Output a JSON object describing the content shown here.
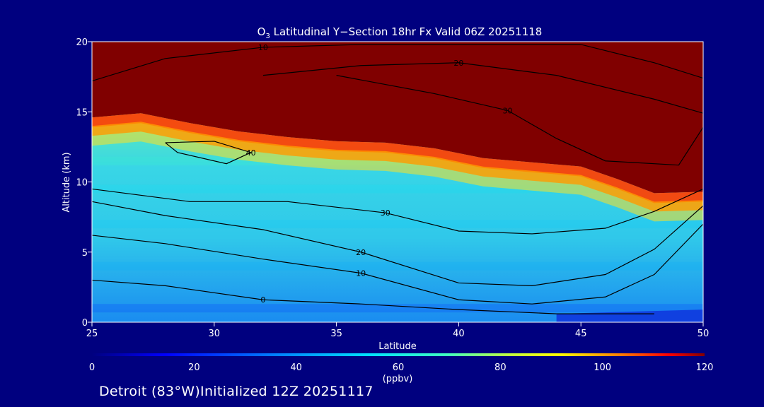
{
  "chart_data": {
    "type": "heatmap",
    "title_prefix": "O",
    "title_sub": "3",
    "title_rest": " Latitudinal Y−Section 18hr  Fx Valid 06Z 20251118",
    "xlabel": "Latitude",
    "ylabel": "Altitude (km)",
    "xlim": [
      25,
      50
    ],
    "ylim": [
      0,
      20
    ],
    "xticks": [
      "25",
      "30",
      "35",
      "40",
      "45",
      "50"
    ],
    "xtick_values": [
      25,
      30,
      35,
      40,
      45,
      50
    ],
    "yticks": [
      "0",
      "5",
      "10",
      "15",
      "20"
    ],
    "ytick_values": [
      0,
      5,
      10,
      15,
      20
    ],
    "colorbar": {
      "label": "(ppbv)",
      "min": 0,
      "max": 120,
      "ticks": [
        "0",
        "20",
        "40",
        "60",
        "80",
        "100",
        "120"
      ],
      "tick_values": [
        0,
        20,
        40,
        60,
        80,
        100,
        120
      ]
    },
    "tropopause_height_km": [
      [
        25,
        14.6
      ],
      [
        27,
        14.9
      ],
      [
        29,
        14.2
      ],
      [
        31,
        13.6
      ],
      [
        33,
        13.2
      ],
      [
        35,
        12.9
      ],
      [
        37,
        12.8
      ],
      [
        39,
        12.4
      ],
      [
        41,
        11.7
      ],
      [
        43,
        11.4
      ],
      [
        45,
        11.1
      ],
      [
        46.5,
        10.2
      ],
      [
        48,
        9.2
      ],
      [
        50,
        9.3
      ]
    ],
    "fill_levels_ppbv": [
      {
        "alt_km": 1.0,
        "value": 20
      },
      {
        "alt_km": 4.0,
        "value": 44
      },
      {
        "alt_km": 7.0,
        "value": 50
      },
      {
        "alt_km": 9.5,
        "value": 56
      },
      {
        "alt_km": 11.5,
        "value": 68
      }
    ],
    "contours": [
      {
        "label": "0",
        "points": [
          [
            25,
            3.0
          ],
          [
            28,
            2.6
          ],
          [
            32,
            1.6
          ],
          [
            36,
            1.3
          ],
          [
            40,
            0.9
          ],
          [
            44,
            0.6
          ],
          [
            48,
            0.6
          ]
        ]
      },
      {
        "label": "10",
        "points": [
          [
            25,
            6.2
          ],
          [
            28,
            5.6
          ],
          [
            32,
            4.5
          ],
          [
            36,
            3.5
          ],
          [
            40,
            1.6
          ],
          [
            43,
            1.3
          ],
          [
            46,
            1.8
          ],
          [
            48,
            3.4
          ],
          [
            50,
            7.0
          ]
        ]
      },
      {
        "label": "20",
        "points": [
          [
            25,
            8.6
          ],
          [
            28,
            7.6
          ],
          [
            32,
            6.6
          ],
          [
            36,
            5.0
          ],
          [
            40,
            2.8
          ],
          [
            43,
            2.6
          ],
          [
            46,
            3.4
          ],
          [
            48,
            5.2
          ],
          [
            50,
            8.3
          ]
        ]
      },
      {
        "label": "30",
        "points": [
          [
            25,
            9.5
          ],
          [
            29,
            8.6
          ],
          [
            33,
            8.6
          ],
          [
            37,
            7.8
          ],
          [
            40,
            6.5
          ],
          [
            43,
            6.3
          ],
          [
            46,
            6.7
          ],
          [
            48,
            7.9
          ],
          [
            50,
            9.5
          ]
        ]
      },
      {
        "label": "40",
        "points": [
          [
            28,
            12.8
          ],
          [
            30,
            12.9
          ],
          [
            31.5,
            12.1
          ],
          [
            30.5,
            11.3
          ],
          [
            28.5,
            12.1
          ],
          [
            28,
            12.8
          ]
        ]
      },
      {
        "label": "30",
        "points": [
          [
            35,
            17.6
          ],
          [
            39,
            16.3
          ],
          [
            42,
            15.1
          ],
          [
            44,
            13.1
          ],
          [
            46,
            11.5
          ],
          [
            49,
            11.2
          ],
          [
            50,
            13.9
          ]
        ]
      },
      {
        "label": "20",
        "points": [
          [
            32,
            17.6
          ],
          [
            36,
            18.3
          ],
          [
            40,
            18.5
          ],
          [
            44,
            17.6
          ],
          [
            48,
            15.9
          ],
          [
            50,
            14.9
          ]
        ]
      },
      {
        "label": "10",
        "points": [
          [
            25,
            17.2
          ],
          [
            28,
            18.8
          ],
          [
            32,
            19.6
          ],
          [
            36,
            19.8
          ],
          [
            40,
            19.8
          ],
          [
            45,
            19.8
          ],
          [
            48,
            18.5
          ],
          [
            50,
            17.4
          ]
        ]
      }
    ]
  },
  "footer": {
    "text": "Detroit (83°W)Initialized 12Z 20251117"
  }
}
